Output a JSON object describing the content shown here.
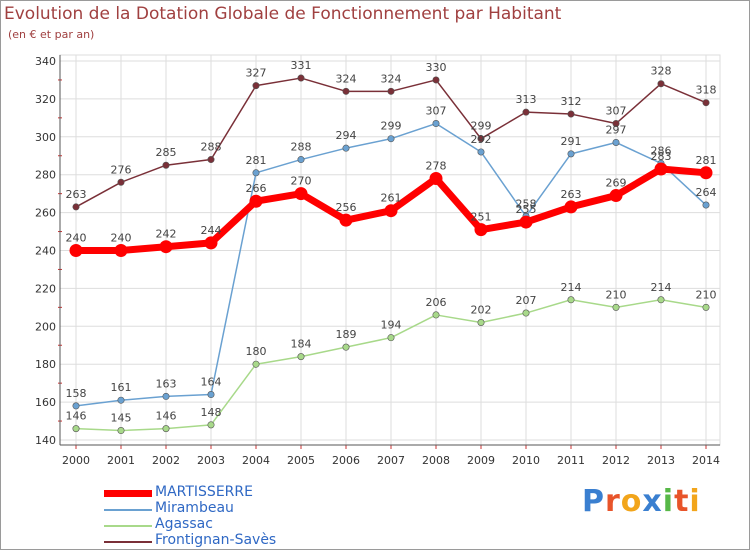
{
  "chart_data": {
    "type": "line",
    "title": "Evolution de la Dotation Globale de Fonctionnement par Habitant",
    "subtitle": "(en € et par an)",
    "xlabel": "",
    "ylabel": "",
    "x": [
      "2000",
      "2001",
      "2002",
      "2003",
      "2004",
      "2005",
      "2006",
      "2007",
      "2008",
      "2009",
      "2010",
      "2011",
      "2012",
      "2013",
      "2014"
    ],
    "ylim": [
      140,
      340
    ],
    "yticks": [
      "140",
      "160",
      "180",
      "200",
      "220",
      "240",
      "260",
      "280",
      "300",
      "320",
      "340"
    ],
    "grid": true,
    "legend_position": "bottom-left",
    "series": [
      {
        "name": "MARTISSERRE",
        "color": "#ff0000",
        "values": [
          240,
          240,
          242,
          244,
          266,
          270,
          256,
          261,
          278,
          251,
          255,
          263,
          269,
          283,
          281
        ],
        "labels": [
          "240",
          "240",
          "242",
          "244",
          "266",
          "270",
          "256",
          "261",
          "278",
          "251",
          "255",
          "263",
          "269",
          "283",
          "281"
        ]
      },
      {
        "name": "Mirambeau",
        "color": "#6aa1d1",
        "values": [
          158,
          161,
          163,
          164,
          281,
          288,
          294,
          299,
          307,
          292,
          258,
          291,
          297,
          286,
          264
        ],
        "labels": [
          "158",
          "161",
          "163",
          "164",
          "281",
          "288",
          "294",
          "299",
          "307",
          "292",
          "258",
          "291",
          "297",
          "286",
          "264"
        ]
      },
      {
        "name": "Agassac",
        "color": "#a8d98a",
        "values": [
          146,
          145,
          146,
          148,
          180,
          184,
          189,
          194,
          206,
          202,
          207,
          214,
          210,
          214,
          210
        ],
        "labels": [
          "146",
          "145",
          "146",
          "148",
          "180",
          "184",
          "189",
          "194",
          "206",
          "202",
          "207",
          "214",
          "210",
          "214",
          "210"
        ]
      },
      {
        "name": "Frontignan-Savès",
        "color": "#7a3038",
        "values": [
          263,
          276,
          285,
          288,
          327,
          331,
          324,
          324,
          330,
          299,
          313,
          312,
          307,
          328,
          318
        ],
        "labels": [
          "263",
          "276",
          "285",
          "288",
          "327",
          "331",
          "324",
          "324",
          "330",
          "299",
          "313",
          "312",
          "307",
          "328",
          "318"
        ]
      }
    ]
  },
  "brand": {
    "letters": [
      "P",
      "r",
      "o",
      "x",
      "i",
      "t",
      "i"
    ],
    "colors": [
      "#3a7fd0",
      "#e8542a",
      "#f2a51b",
      "#3a7fd0",
      "#57b847",
      "#e8542a",
      "#f2a51b"
    ]
  }
}
